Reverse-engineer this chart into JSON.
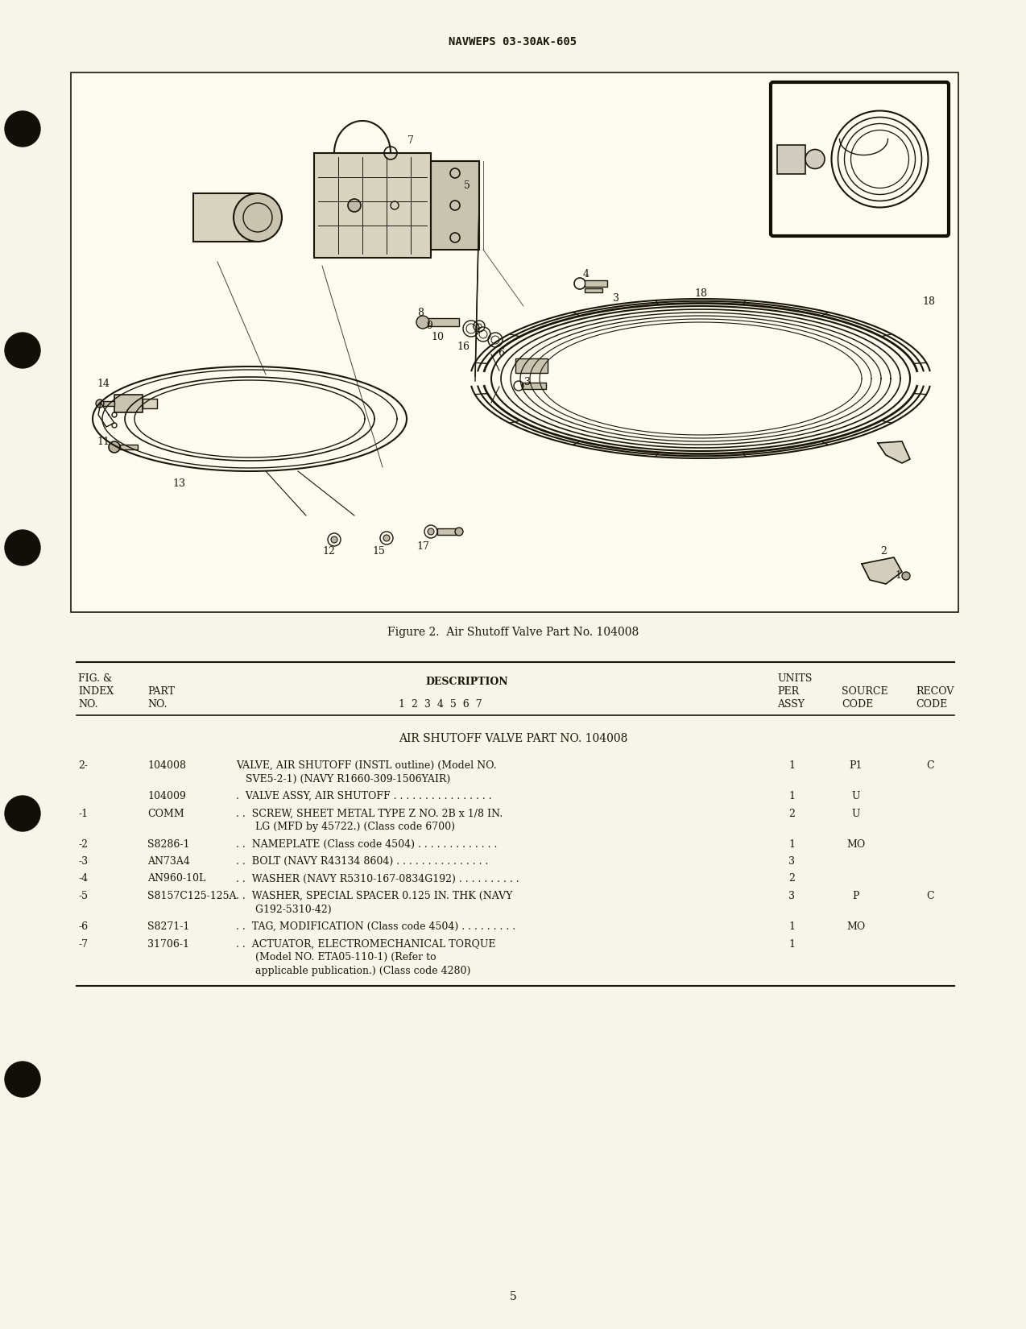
{
  "page_bg": "#f7f4e9",
  "header_text": "NAVWEPS 03-30AK-605",
  "figure_caption": "Figure 2.  Air Shutoff Valve Part No. 104008",
  "table_title": "AIR SHUTOFF VALVE PART NO. 104008",
  "page_number": "5",
  "parts": [
    {
      "fig_index": "2-",
      "part_no": "104008",
      "desc_line1": "VALVE, AIR SHUTOFF (INSTL outline) (Model NO.",
      "desc_line2": "   SVE5-2-1) (NAVY R1660-309-1506YAIR)",
      "desc_line3": "",
      "units": "1",
      "source": "P1",
      "recov": "C"
    },
    {
      "fig_index": "",
      "part_no": "104009",
      "desc_line1": ".  VALVE ASSY, AIR SHUTOFF . . . . . . . . . . . . . . . .",
      "desc_line2": "",
      "desc_line3": "",
      "units": "1",
      "source": "U",
      "recov": ""
    },
    {
      "fig_index": "-1",
      "part_no": "COMM",
      "desc_line1": ". .  SCREW, SHEET METAL TYPE Z NO. 2B x 1/8 IN.",
      "desc_line2": "      LG (MFD by 45722.) (Class code 6700)",
      "desc_line3": "",
      "units": "2",
      "source": "U",
      "recov": ""
    },
    {
      "fig_index": "-2",
      "part_no": "S8286-1",
      "desc_line1": ". .  NAMEPLATE (Class code 4504) . . . . . . . . . . . . .",
      "desc_line2": "",
      "desc_line3": "",
      "units": "1",
      "source": "MO",
      "recov": ""
    },
    {
      "fig_index": "-3",
      "part_no": "AN73A4",
      "desc_line1": ". .  BOLT (NAVY R43134 8604) . . . . . . . . . . . . . . .",
      "desc_line2": "",
      "desc_line3": "",
      "units": "3",
      "source": "",
      "recov": ""
    },
    {
      "fig_index": "-4",
      "part_no": "AN960-10L",
      "desc_line1": ". .  WASHER (NAVY R5310-167-0834G192) . . . . . . . . . .",
      "desc_line2": "",
      "desc_line3": "",
      "units": "2",
      "source": "",
      "recov": ""
    },
    {
      "fig_index": "-5",
      "part_no": "S8157C125-125A",
      "desc_line1": ". .  WASHER, SPECIAL SPACER 0.125 IN. THK (NAVY",
      "desc_line2": "      G192-5310-42)",
      "desc_line3": "",
      "units": "3",
      "source": "P",
      "recov": "C"
    },
    {
      "fig_index": "-6",
      "part_no": "S8271-1",
      "desc_line1": ". .  TAG, MODIFICATION (Class code 4504) . . . . . . . . .",
      "desc_line2": "",
      "desc_line3": "",
      "units": "1",
      "source": "MO",
      "recov": ""
    },
    {
      "fig_index": "-7",
      "part_no": "31706-1",
      "desc_line1": ". .  ACTUATOR, ELECTROMECHANICAL TORQUE",
      "desc_line2": "      (Model NO. ETA05-110-1) (Refer to",
      "desc_line3": "      applicable publication.) (Class code 4280)",
      "units": "1",
      "source": "",
      "recov": ""
    }
  ],
  "text_color": "#1a1608",
  "line_color": "#1a1608",
  "dark_color": "#111008"
}
